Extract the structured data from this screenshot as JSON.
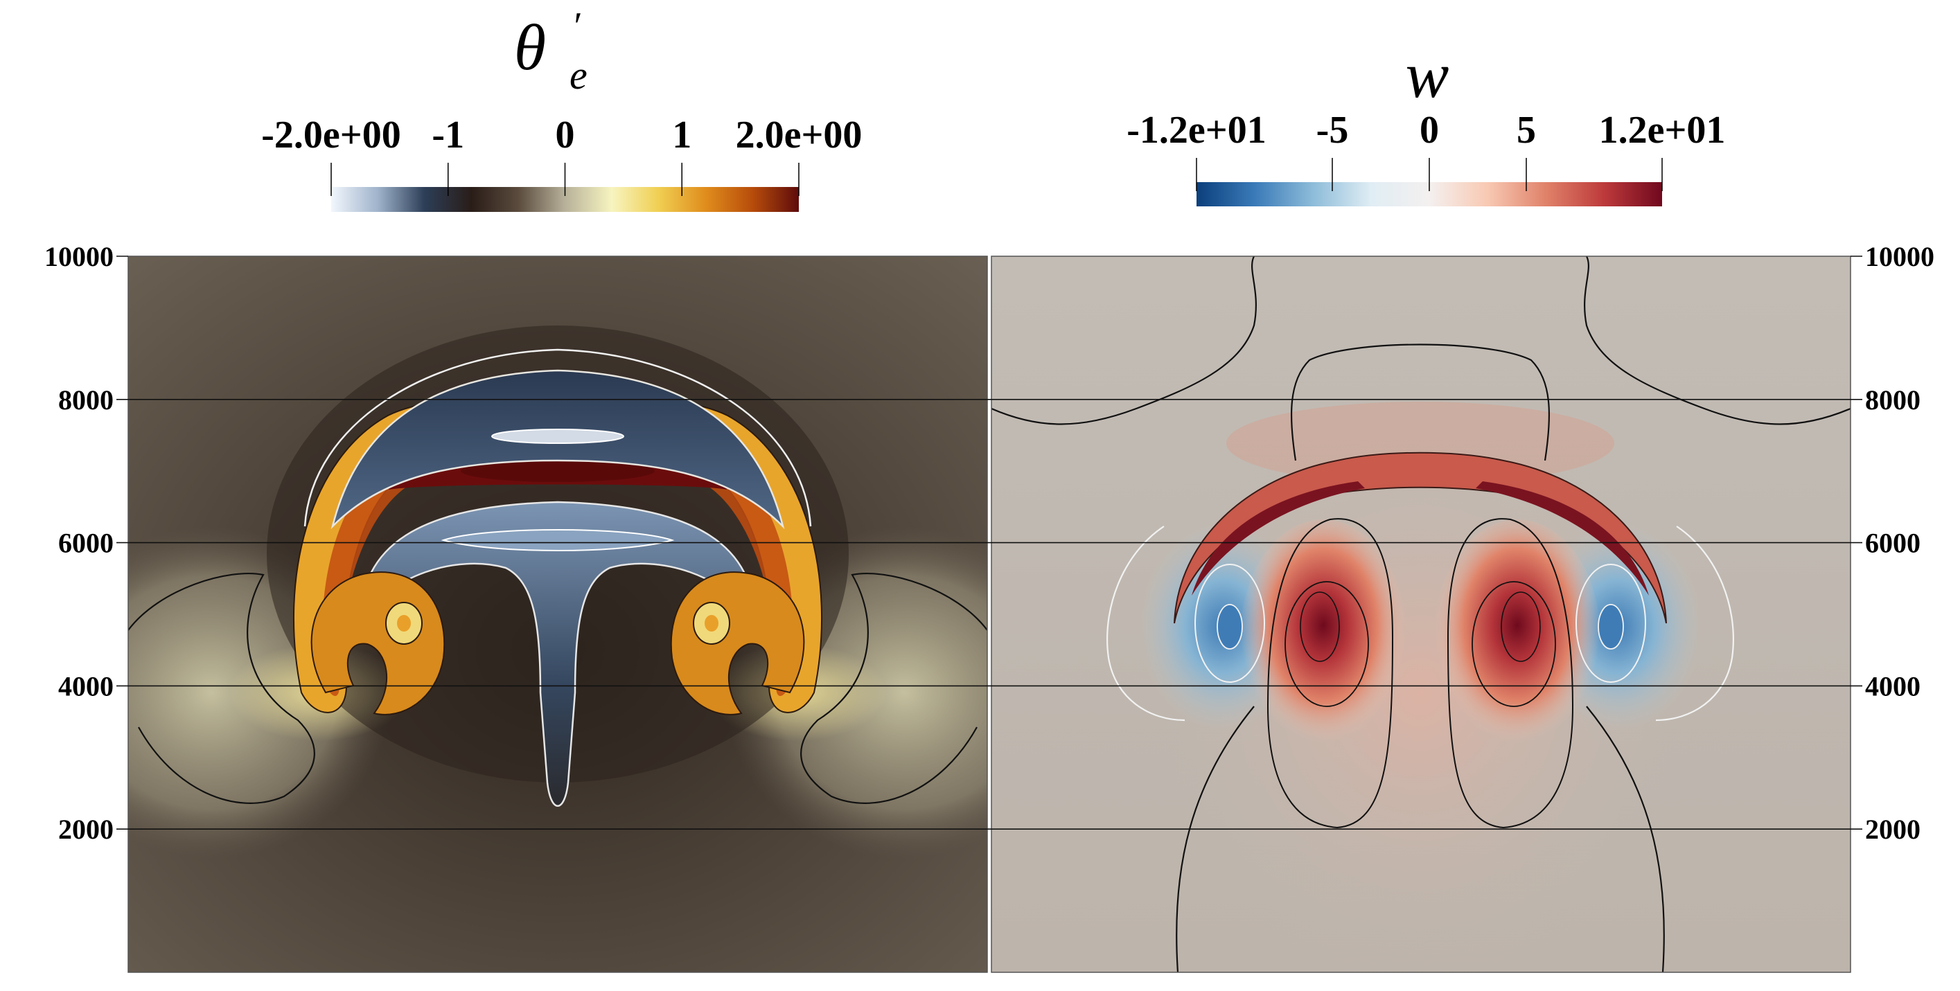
{
  "chart_data": [
    {
      "type": "heatmap",
      "title": "θe′",
      "title_base": "θ",
      "title_sub": "e",
      "title_sup": "′",
      "colorbar": {
        "range": [
          -2.0,
          2.0
        ],
        "tick_values": [
          -2.0,
          -1,
          0,
          1,
          2.0
        ],
        "tick_labels": [
          "-2.0e+00",
          "-1",
          "0",
          "1",
          "2.0e+00"
        ],
        "colormap": [
          "#f2f7fd",
          "#9fb3cb",
          "#2c3e57",
          "#2a1d18",
          "#5a4b3d",
          "#b8b19a",
          "#f7f4c0",
          "#f0cf52",
          "#e08d1d",
          "#b84d0b",
          "#5e0b0b"
        ]
      },
      "x_range": [
        0,
        10000
      ],
      "y_range": [
        0,
        10000
      ],
      "y_ticks": [
        2000,
        4000,
        6000,
        8000,
        10000
      ],
      "y_tick_labels": [
        "2000",
        "4000",
        "6000",
        "8000",
        "10000"
      ],
      "background_color": "#5d5347",
      "features": [
        {
          "kind": "warm_arc_band",
          "x_center": 5000,
          "y_top": 6700,
          "value": 2.0
        },
        {
          "kind": "cool_cap",
          "x_center": 5000,
          "y_center": 7100,
          "value": -1.0
        },
        {
          "kind": "cool_stem",
          "x_center": 5000,
          "y_bottom": 2300,
          "value": -1.5
        },
        {
          "kind": "left_rotor",
          "x": 3300,
          "y": 4900,
          "value": 1.5
        },
        {
          "kind": "right_rotor",
          "x": 6700,
          "y": 4900,
          "value": 1.5
        }
      ]
    },
    {
      "type": "heatmap",
      "title": "w",
      "colorbar": {
        "range": [
          -12,
          12
        ],
        "tick_values": [
          -12,
          -5,
          0,
          5,
          12
        ],
        "tick_labels": [
          "-1.2e+01",
          "-5",
          "0",
          "5",
          "1.2e+01"
        ],
        "colormap": [
          "#0b3f7c",
          "#3a7ab8",
          "#8dbcd9",
          "#e0edf4",
          "#f4f0ef",
          "#f8c9b3",
          "#e0826a",
          "#bd3a3b",
          "#70081e"
        ]
      },
      "x_range": [
        0,
        10000
      ],
      "y_range": [
        0,
        10000
      ],
      "y_ticks": [
        2000,
        4000,
        6000,
        8000,
        10000
      ],
      "y_tick_labels": [
        "2000",
        "4000",
        "6000",
        "8000",
        "10000"
      ],
      "background_color": "#bfb8b0",
      "features": [
        {
          "kind": "updraft_core",
          "x": 3800,
          "y": 4800,
          "value": 12
        },
        {
          "kind": "updraft_core",
          "x": 6200,
          "y": 4800,
          "value": 12
        },
        {
          "kind": "downdraft_core",
          "x": 2800,
          "y": 4800,
          "value": -9
        },
        {
          "kind": "downdraft_core",
          "x": 7200,
          "y": 4800,
          "value": -9
        },
        {
          "kind": "updraft_arc",
          "x_center": 5000,
          "y_top": 7000,
          "value": 5
        }
      ]
    }
  ]
}
